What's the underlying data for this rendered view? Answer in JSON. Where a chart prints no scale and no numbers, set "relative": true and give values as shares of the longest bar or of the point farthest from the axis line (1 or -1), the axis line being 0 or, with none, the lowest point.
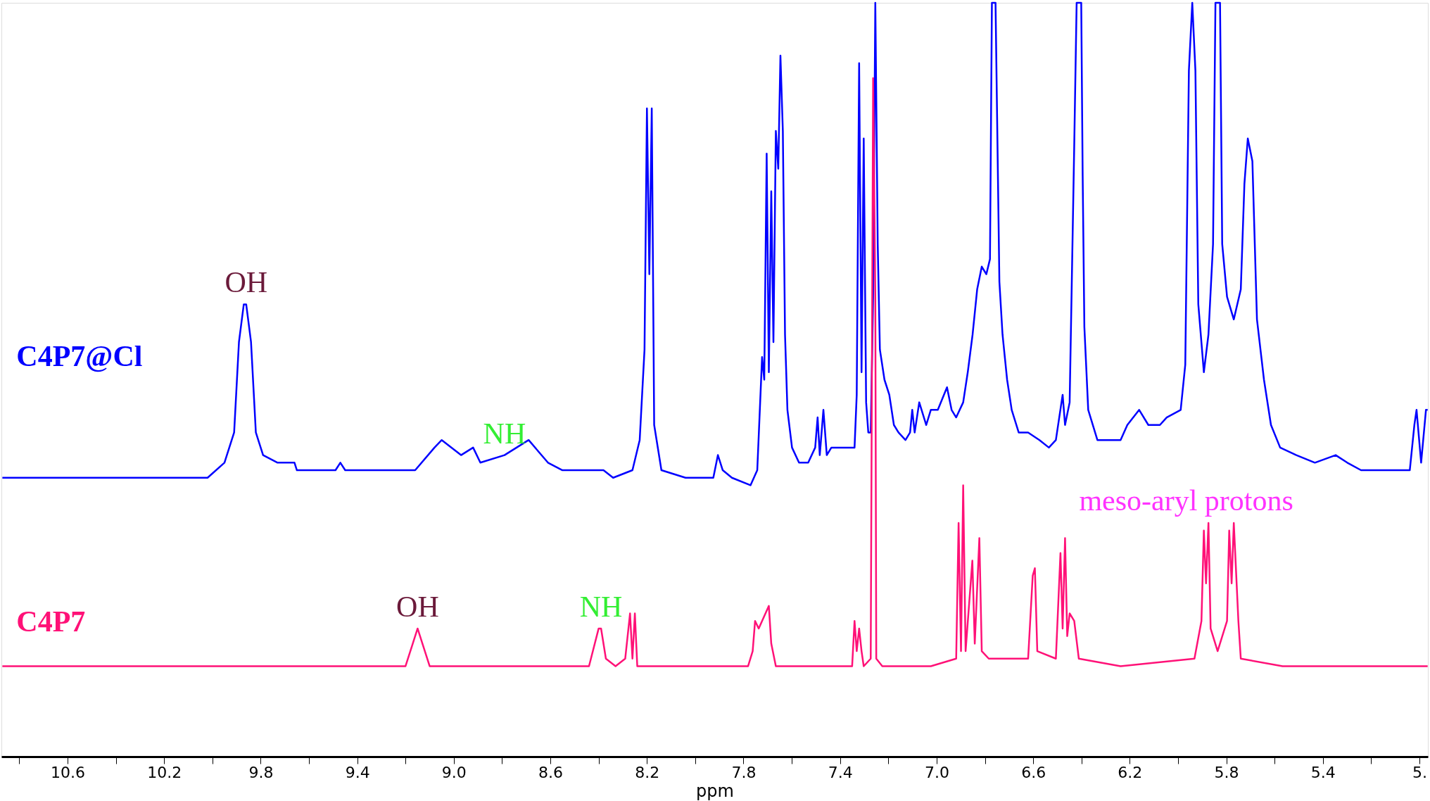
{
  "chart_data": {
    "type": "line",
    "relative": true,
    "xlabel": "ppm",
    "xlim": [
      10.874,
      4.965
    ],
    "xticks": [
      {
        "value": 10.8,
        "label": null
      },
      10.6,
      {
        "value": 10.4,
        "label": null
      },
      10.2,
      {
        "value": 10.0,
        "label": null
      },
      9.8,
      {
        "value": 9.6,
        "label": null
      },
      9.4,
      {
        "value": 9.2,
        "label": null
      },
      {
        "value": 9.0,
        "label": "9.0"
      },
      {
        "value": 8.8,
        "label": null
      },
      8.6,
      {
        "value": 8.4,
        "label": null
      },
      8.2,
      {
        "value": 8.0,
        "label": null
      },
      7.8,
      {
        "value": 7.6,
        "label": null
      },
      7.4,
      {
        "value": 7.2,
        "label": null
      },
      {
        "value": 7.0,
        "label": "7.0"
      },
      {
        "value": 6.8,
        "label": null
      },
      6.6,
      {
        "value": 6.4,
        "label": null
      },
      6.2,
      {
        "value": 6.0,
        "label": null
      },
      5.8,
      {
        "value": 5.6,
        "label": null
      },
      5.4,
      {
        "value": 5.2,
        "label": null
      },
      {
        "value": 5.0,
        "label": "5."
      }
    ],
    "series": [
      {
        "name": "C4P7@Cl",
        "color": "#0000ff",
        "x": [
          10.87,
          10.47,
          10.02,
          9.95,
          9.91,
          9.89,
          9.87,
          9.86,
          9.84,
          9.82,
          9.79,
          9.73,
          9.66,
          9.65,
          9.49,
          9.47,
          9.45,
          9.16,
          9.08,
          9.05,
          8.97,
          8.92,
          8.89,
          8.79,
          8.69,
          8.61,
          8.55,
          8.4,
          8.38,
          8.34,
          8.26,
          8.23,
          8.21,
          8.2,
          8.19,
          8.18,
          8.17,
          8.14,
          8.04,
          7.925,
          7.906,
          7.886,
          7.848,
          7.771,
          7.743,
          7.723,
          7.714,
          7.704,
          7.695,
          7.685,
          7.676,
          7.666,
          7.656,
          7.647,
          7.637,
          7.628,
          7.618,
          7.599,
          7.57,
          7.532,
          7.503,
          7.493,
          7.484,
          7.469,
          7.455,
          7.436,
          7.359,
          7.34,
          7.331,
          7.321,
          7.311,
          7.302,
          7.292,
          7.283,
          7.273,
          7.263,
          7.254,
          7.244,
          7.235,
          7.216,
          7.196,
          7.177,
          7.158,
          7.129,
          7.11,
          7.101,
          7.091,
          7.072,
          7.043,
          7.024,
          6.995,
          6.957,
          6.938,
          6.919,
          6.89,
          6.871,
          6.851,
          6.832,
          6.813,
          6.794,
          6.779,
          6.771,
          6.756,
          6.74,
          6.727,
          6.708,
          6.689,
          6.66,
          6.621,
          6.574,
          6.535,
          6.506,
          6.478,
          6.468,
          6.449,
          6.43,
          6.42,
          6.401,
          6.395,
          6.388,
          6.372,
          6.334,
          6.296,
          6.238,
          6.21,
          6.161,
          6.123,
          6.075,
          6.047,
          5.989,
          5.97,
          5.955,
          5.941,
          5.928,
          5.916,
          5.893,
          5.874,
          5.855,
          5.845,
          5.826,
          5.817,
          5.797,
          5.769,
          5.74,
          5.725,
          5.711,
          5.692,
          5.673,
          5.644,
          5.615,
          5.577,
          5.51,
          5.433,
          5.347,
          5.299,
          5.242,
          5.127,
          5.04,
          5.021,
          5.012,
          4.993,
          4.973,
          4.966
        ],
        "values": [
          0.37,
          0.37,
          0.37,
          0.39,
          0.43,
          0.55,
          0.6,
          0.6,
          0.55,
          0.43,
          0.4,
          0.39,
          0.39,
          0.38,
          0.38,
          0.39,
          0.38,
          0.38,
          0.41,
          0.42,
          0.4,
          0.41,
          0.39,
          0.4,
          0.42,
          0.39,
          0.38,
          0.38,
          0.38,
          0.37,
          0.38,
          0.42,
          0.54,
          0.86,
          0.64,
          0.86,
          0.44,
          0.38,
          0.37,
          0.37,
          0.4,
          0.38,
          0.37,
          0.36,
          0.38,
          0.53,
          0.5,
          0.8,
          0.51,
          0.75,
          0.55,
          0.83,
          0.78,
          0.93,
          0.83,
          0.56,
          0.46,
          0.41,
          0.39,
          0.39,
          0.41,
          0.45,
          0.4,
          0.46,
          0.4,
          0.41,
          0.41,
          0.41,
          0.48,
          0.92,
          0.51,
          0.82,
          0.47,
          0.43,
          0.43,
          0.61,
          1.0,
          0.68,
          0.54,
          0.5,
          0.48,
          0.44,
          0.43,
          0.42,
          0.43,
          0.46,
          0.43,
          0.47,
          0.44,
          0.46,
          0.46,
          0.49,
          0.46,
          0.45,
          0.47,
          0.51,
          0.56,
          0.62,
          0.65,
          0.64,
          0.66,
          1.0,
          1.0,
          0.63,
          0.56,
          0.5,
          0.46,
          0.43,
          0.43,
          0.42,
          0.41,
          0.42,
          0.48,
          0.44,
          0.47,
          0.81,
          1.0,
          1.0,
          0.77,
          0.57,
          0.46,
          0.42,
          0.42,
          0.42,
          0.44,
          0.46,
          0.44,
          0.44,
          0.45,
          0.46,
          0.52,
          0.91,
          1.0,
          0.91,
          0.6,
          0.51,
          0.56,
          0.68,
          1.0,
          1.0,
          0.68,
          0.61,
          0.58,
          0.62,
          0.76,
          0.82,
          0.79,
          0.58,
          0.5,
          0.44,
          0.41,
          0.4,
          0.39,
          0.4,
          0.39,
          0.38,
          0.38,
          0.38,
          0.44,
          0.46,
          0.39,
          0.46,
          0.46
        ]
      },
      {
        "name": "C4P7",
        "color": "#ff1177",
        "x": [
          10.87,
          9.28,
          9.27,
          9.2,
          9.17,
          9.15,
          9.13,
          9.1,
          9.03,
          8.44,
          8.4,
          8.39,
          8.37,
          8.33,
          8.29,
          8.27,
          8.26,
          8.25,
          8.24,
          8.2,
          8.06,
          7.781,
          7.762,
          7.752,
          7.737,
          7.723,
          7.695,
          7.685,
          7.666,
          7.513,
          7.35,
          7.34,
          7.331,
          7.321,
          7.311,
          7.302,
          7.273,
          7.263,
          7.254,
          7.25,
          7.225,
          7.024,
          6.919,
          6.909,
          6.899,
          6.89,
          6.88,
          6.852,
          6.842,
          6.823,
          6.813,
          6.784,
          6.621,
          6.602,
          6.593,
          6.583,
          6.506,
          6.487,
          6.478,
          6.468,
          6.459,
          6.449,
          6.43,
          6.411,
          6.238,
          5.932,
          5.903,
          5.893,
          5.884,
          5.874,
          5.865,
          5.836,
          5.797,
          5.788,
          5.778,
          5.769,
          5.75,
          5.74,
          5.567,
          5.088,
          4.966
        ],
        "values": [
          0.12,
          0.12,
          0.12,
          0.12,
          0.15,
          0.17,
          0.15,
          0.12,
          0.12,
          0.12,
          0.17,
          0.17,
          0.13,
          0.12,
          0.13,
          0.19,
          0.13,
          0.19,
          0.12,
          0.12,
          0.12,
          0.12,
          0.14,
          0.18,
          0.17,
          0.18,
          0.2,
          0.15,
          0.12,
          0.12,
          0.12,
          0.18,
          0.14,
          0.17,
          0.14,
          0.12,
          0.13,
          0.9,
          0.61,
          0.13,
          0.12,
          0.12,
          0.13,
          0.31,
          0.14,
          0.36,
          0.14,
          0.26,
          0.15,
          0.29,
          0.14,
          0.13,
          0.13,
          0.24,
          0.25,
          0.14,
          0.13,
          0.27,
          0.17,
          0.29,
          0.16,
          0.19,
          0.18,
          0.13,
          0.12,
          0.13,
          0.18,
          0.3,
          0.23,
          0.31,
          0.17,
          0.14,
          0.18,
          0.3,
          0.23,
          0.31,
          0.18,
          0.13,
          0.12,
          0.12,
          0.12
        ]
      }
    ],
    "annotations": [
      {
        "text": "OH",
        "x": 9.86,
        "y": 0.6
      },
      {
        "text": "NH",
        "x": 8.79,
        "y": 0.4
      },
      {
        "text": "OH",
        "x": 9.15,
        "y": 0.17
      },
      {
        "text": "NH",
        "x": 8.39,
        "y": 0.17
      },
      {
        "text": "meso-aryl protons",
        "x": 6.468,
        "y": 0.29
      }
    ]
  }
}
